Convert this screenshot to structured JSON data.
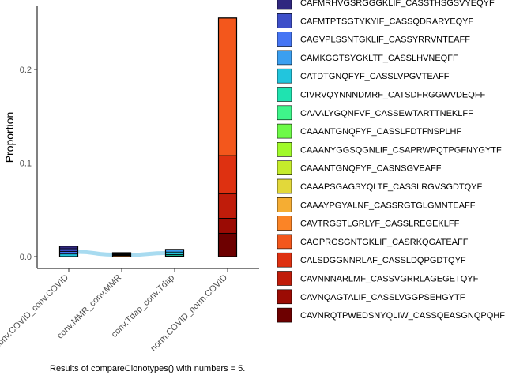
{
  "chart_data": {
    "type": "bar",
    "subtype": "stacked-alluvial",
    "ylabel": "Proportion",
    "xlabel": "",
    "caption": "Results of compareClonotypes() with numbers = 5.",
    "ylim": [
      0,
      0.27
    ],
    "yticks": [
      {
        "value": 0.0,
        "label": "0.0"
      },
      {
        "value": 0.1,
        "label": "0.1"
      },
      {
        "value": 0.2,
        "label": "0.2"
      }
    ],
    "grid": false,
    "legend_position": "right",
    "categories": [
      "conv.COVID_conv.COVID",
      "conv.MMR_conv.MMR",
      "conv.Tdap_conv.Tdap",
      "norm.COVID_norm.COVID"
    ],
    "series": [
      {
        "name": "CAFMRHVGSRGGGKLIF_CASSTHSGSVYEQYF",
        "color": "#30277f",
        "values": [
          0.0028,
          0,
          0,
          0
        ]
      },
      {
        "name": "CAFMTPTSGTYKYIF_CASSQDRARYEQYF",
        "color": "#3e4fc9",
        "values": [
          0.0028,
          0,
          0,
          0
        ]
      },
      {
        "name": "CAGVPLSSNTGKLIF_CASSYRRVNTEAFF",
        "color": "#4575f4",
        "values": [
          0.0028,
          0,
          0,
          0
        ]
      },
      {
        "name": "CAMKGGTSYGKLTF_CASSLHVNEQFF",
        "color": "#3b9ff0",
        "values": [
          0,
          0,
          0.0028,
          0
        ]
      },
      {
        "name": "CATDTGNQFYF_CASSLVPGVTEAFF",
        "color": "#22c5dd",
        "values": [
          0.0028,
          0,
          0.0028,
          0
        ]
      },
      {
        "name": "CIVRVQYNNNDMRF_CATSDFRGGWVDEQFF",
        "color": "#1fe3b0",
        "values": [
          0,
          0,
          0.0014,
          0
        ]
      },
      {
        "name": "CAAALYGQNFVF_CASSEWTARTTNEKLFF",
        "color": "#3ff58a",
        "values": [
          0,
          0,
          0.0007,
          0
        ]
      },
      {
        "name": "CAAANTGNQFYF_CASSLFDTFNSPLHF",
        "color": "#6efa48",
        "values": [
          0,
          0.0006,
          0,
          0
        ]
      },
      {
        "name": "CAAANYGGSQGNLIF_CSAPRWPQTPGFNYGYTF",
        "color": "#a0fa29",
        "values": [
          0,
          0.0006,
          0,
          0
        ]
      },
      {
        "name": "CAAANTGNQFYF_CASNSGVEAFF",
        "color": "#c5ec2b",
        "values": [
          0,
          0.0006,
          0,
          0
        ]
      },
      {
        "name": "CAAAPSGAGSYQLTF_CASSLRGVSGDTQYF",
        "color": "#e2d83a",
        "values": [
          0,
          0.0006,
          0,
          0
        ]
      },
      {
        "name": "CAAAYPGYALNF_CASSRGTGLGMNTEAFF",
        "color": "#f5ad33",
        "values": [
          0,
          0.0006,
          0,
          0
        ]
      },
      {
        "name": "CAVTRGSTLGRLYF_CASSLREGEKLFF",
        "color": "#fb8426",
        "values": [
          0,
          0.0012,
          0,
          0
        ]
      },
      {
        "name": "CAGPRGSGNTGKLIF_CASRKQGATEAFF",
        "color": "#f3571c",
        "values": [
          0,
          0,
          0,
          0.147
        ]
      },
      {
        "name": "CALSDGGNNRLAF_CASSLDQPGDTQYF",
        "color": "#de3111",
        "values": [
          0,
          0,
          0,
          0.041
        ]
      },
      {
        "name": "CAVNNNARLMF_CASSVGRRLAGEGETQYF",
        "color": "#c01c0a",
        "values": [
          0,
          0,
          0,
          0.026
        ]
      },
      {
        "name": "CAVNQAGTALIF_CASSLVGGPSEHGYTF",
        "color": "#9b0b04",
        "values": [
          0,
          0,
          0,
          0.016
        ]
      },
      {
        "name": "CAVNRQTPWEDSNYQLIW_CASSQEASGNQPQHF",
        "color": "#6d0000",
        "values": [
          0,
          0,
          0,
          0.025
        ]
      }
    ],
    "flow_color": "#9fd7ee"
  }
}
